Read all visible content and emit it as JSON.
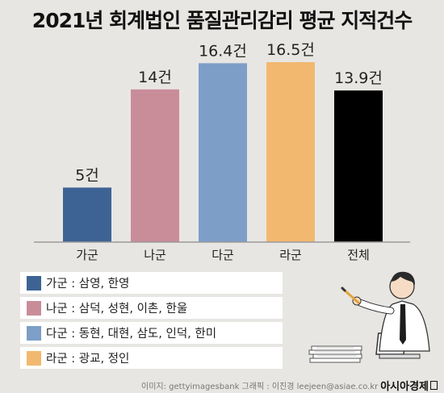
{
  "title": "2021년 회계법인 품질관리감리 평균 지적건수",
  "chart_data": {
    "type": "bar",
    "title": "2021년 회계법인 품질관리감리 평균 지적건수",
    "categories": [
      "가군",
      "나군",
      "다군",
      "라군",
      "전체"
    ],
    "values": [
      5,
      14,
      16.4,
      16.5,
      13.9
    ],
    "value_labels": [
      "5건",
      "14건",
      "16.4건",
      "16.5건",
      "13.9건"
    ],
    "colors": [
      "#3d6394",
      "#c98d99",
      "#7d9ec7",
      "#f2b86f",
      "#000000"
    ],
    "ylim": [
      0,
      16.5
    ],
    "grid": false,
    "xlabel": "",
    "ylabel": ""
  },
  "legend": [
    {
      "label": "가군 : 삼영, 한영",
      "color": "#3d6394"
    },
    {
      "label": "나군 : 삼덕, 성현, 이촌, 한울",
      "color": "#c98d99"
    },
    {
      "label": "다군 : 동현, 대현, 삼도, 인덕, 한미",
      "color": "#7d9ec7"
    },
    {
      "label": "라군 : 광교, 정인",
      "color": "#f2b86f"
    }
  ],
  "footer": {
    "credit": "이미지: gettyimagesbank   그래픽 : 이진경 leejeen@asiae.co.kr",
    "brand": "아시아경제"
  }
}
